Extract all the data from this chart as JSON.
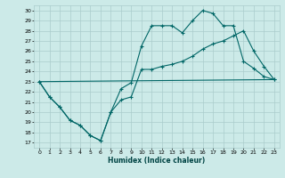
{
  "xlabel": "Humidex (Indice chaleur)",
  "bg_color": "#cceae8",
  "grid_color": "#aacccc",
  "line_color": "#006666",
  "xlim": [
    -0.5,
    23.5
  ],
  "ylim": [
    16.5,
    30.5
  ],
  "yticks": [
    17,
    18,
    19,
    20,
    21,
    22,
    23,
    24,
    25,
    26,
    27,
    28,
    29,
    30
  ],
  "xticks": [
    0,
    1,
    2,
    3,
    4,
    5,
    6,
    7,
    8,
    9,
    10,
    11,
    12,
    13,
    14,
    15,
    16,
    17,
    18,
    19,
    20,
    21,
    22,
    23
  ],
  "series1_x": [
    0,
    1,
    2,
    3,
    4,
    5,
    6,
    7,
    8,
    9,
    10,
    11,
    12,
    13,
    14,
    15,
    16,
    17,
    18,
    19,
    20,
    21,
    22,
    23
  ],
  "series1_y": [
    23,
    21.5,
    20.5,
    19.2,
    18.7,
    17.7,
    17.2,
    20.0,
    22.3,
    22.9,
    26.5,
    28.5,
    28.5,
    28.5,
    27.8,
    29.0,
    30.0,
    29.7,
    28.5,
    28.5,
    25.0,
    24.3,
    23.5,
    23.2
  ],
  "series2_x": [
    0,
    1,
    2,
    3,
    4,
    5,
    6,
    7,
    8,
    9,
    10,
    11,
    12,
    13,
    14,
    15,
    16,
    17,
    18,
    19,
    20,
    21,
    22,
    23
  ],
  "series2_y": [
    23,
    21.5,
    20.5,
    19.2,
    18.7,
    17.7,
    17.2,
    20.0,
    21.2,
    21.5,
    24.2,
    24.2,
    24.5,
    24.7,
    25.0,
    25.5,
    26.2,
    26.7,
    27.0,
    27.5,
    28.0,
    26.0,
    24.5,
    23.2
  ],
  "series3_x": [
    0,
    23
  ],
  "series3_y": [
    23.0,
    23.2
  ]
}
